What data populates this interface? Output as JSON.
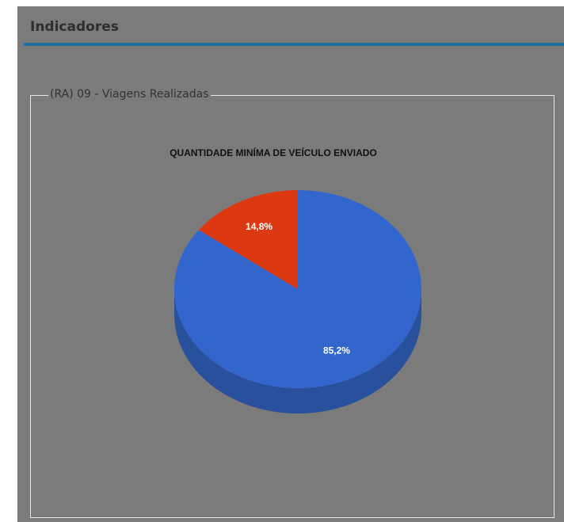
{
  "header": {
    "title": "Indicadores"
  },
  "panel": {
    "legend": "(RA) 09 - Viagens Realizadas"
  },
  "chart_data": {
    "type": "pie",
    "title": "QUANTIDADE MINÍMA DE VEÍCULO ENVIADO",
    "categories": [
      null,
      null
    ],
    "values": [
      85.2,
      14.8
    ],
    "value_labels": [
      "85,2%",
      "14,8%"
    ],
    "colors": [
      "#3366cc",
      "#dc3912"
    ],
    "side_colors": [
      "#28509c",
      "#a92b0e"
    ],
    "three_d": true
  }
}
